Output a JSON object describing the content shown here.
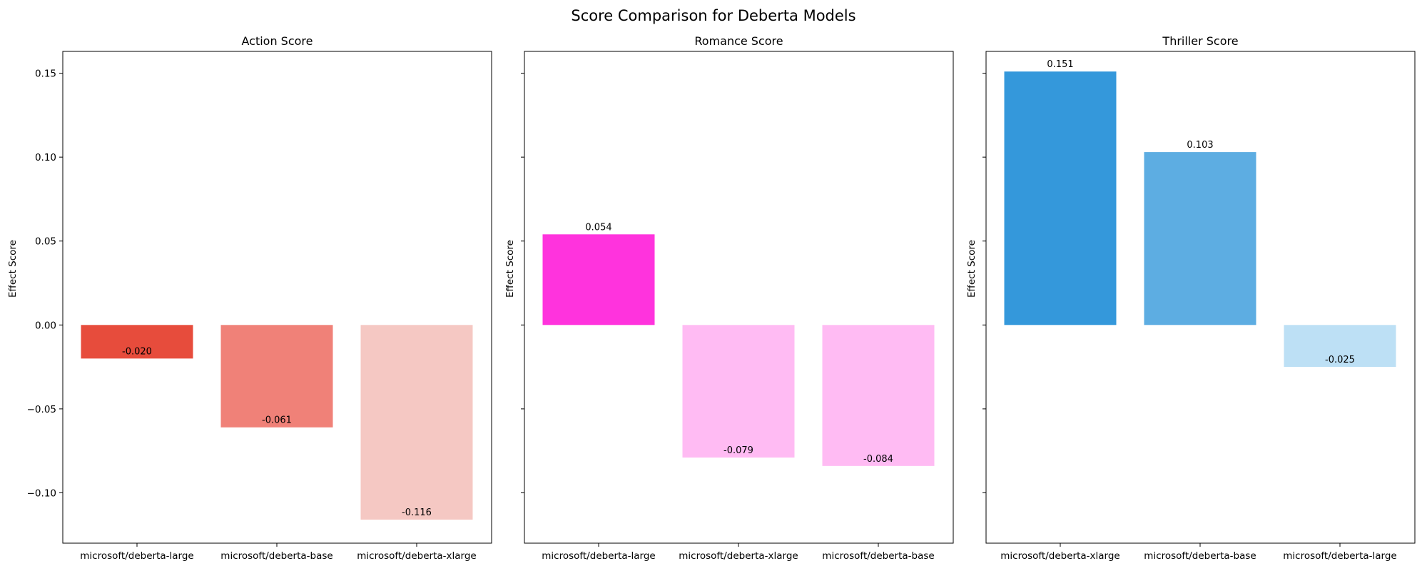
{
  "figure": {
    "title": "Score Comparison for Deberta Models"
  },
  "chart_data": [
    {
      "type": "bar",
      "title": "Action Score",
      "ylabel": "Effect Score",
      "xlabel": "",
      "ylim": [
        -0.13,
        0.163
      ],
      "yticks": [
        -0.1,
        -0.05,
        0.0,
        0.05,
        0.1,
        0.15
      ],
      "ytick_labels": [
        "−0.10",
        "−0.05",
        "0.00",
        "0.05",
        "0.10",
        "0.15"
      ],
      "categories": [
        "microsoft/deberta-large",
        "microsoft/deberta-base",
        "microsoft/deberta-xlarge"
      ],
      "values": [
        -0.02,
        -0.061,
        -0.116
      ],
      "data_labels": [
        "-0.020",
        "-0.061",
        "-0.116"
      ],
      "colors": [
        "#e74c3c",
        "#f08178",
        "#f5c8c3"
      ],
      "grid": false
    },
    {
      "type": "bar",
      "title": "Romance Score",
      "ylabel": "Effect Score",
      "xlabel": "",
      "ylim": [
        -0.13,
        0.163
      ],
      "yticks": [
        -0.1,
        -0.05,
        0.0,
        0.05,
        0.1,
        0.15
      ],
      "ytick_labels": [
        "",
        "",
        "",
        "",
        "",
        ""
      ],
      "categories": [
        "microsoft/deberta-large",
        "microsoft/deberta-xlarge",
        "microsoft/deberta-base"
      ],
      "values": [
        0.054,
        -0.079,
        -0.084
      ],
      "data_labels": [
        "0.054",
        "-0.079",
        "-0.084"
      ],
      "colors": [
        "#ff33dd",
        "#ffbbf3",
        "#ffbbf3"
      ],
      "grid": false
    },
    {
      "type": "bar",
      "title": "Thriller Score",
      "ylabel": "Effect Score",
      "xlabel": "",
      "ylim": [
        -0.13,
        0.163
      ],
      "yticks": [
        -0.1,
        -0.05,
        0.0,
        0.05,
        0.1,
        0.15
      ],
      "ytick_labels": [
        "",
        "",
        "",
        "",
        "",
        ""
      ],
      "categories": [
        "microsoft/deberta-xlarge",
        "microsoft/deberta-base",
        "microsoft/deberta-large"
      ],
      "values": [
        0.151,
        0.103,
        -0.025
      ],
      "data_labels": [
        "0.151",
        "0.103",
        "-0.025"
      ],
      "colors": [
        "#3498db",
        "#5dade2",
        "#bde0f5"
      ],
      "grid": false
    }
  ]
}
